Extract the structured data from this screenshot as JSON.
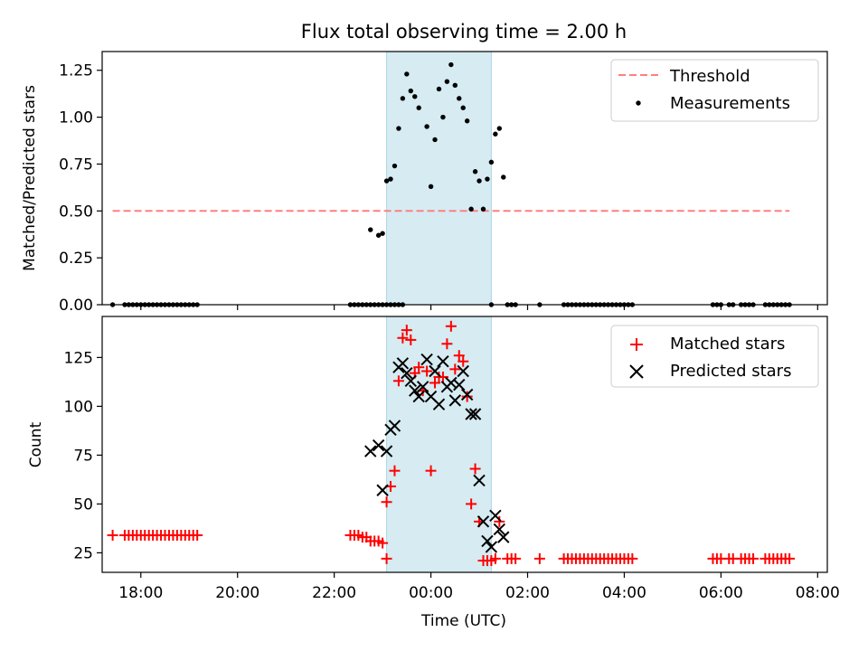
{
  "figure": {
    "title": "Flux total observing time = 2.00 h",
    "xlabel": "Time (UTC)"
  },
  "chart_data": [
    {
      "type": "scatter",
      "panel": "top",
      "ylabel": "Matched/Predicted stars",
      "xlim": [
        "17:12",
        "08:12"
      ],
      "ylim": [
        0,
        1.35
      ],
      "yticks": [
        0.0,
        0.25,
        0.5,
        0.75,
        1.0,
        1.25
      ],
      "ytick_labels": [
        "0.00",
        "0.25",
        "0.50",
        "0.75",
        "1.00",
        "1.25"
      ],
      "highlight_span": [
        "23:05",
        "01:15"
      ],
      "legend": {
        "position": "top-right",
        "entries": [
          "Threshold",
          "Measurements"
        ]
      },
      "series": [
        {
          "name": "Threshold",
          "kind": "dashed-line",
          "color": "#ff7f7f",
          "x": [
            "17:25",
            "07:25"
          ],
          "y": [
            0.5,
            0.5
          ]
        },
        {
          "name": "Measurements",
          "kind": "points",
          "color": "#000000",
          "points": [
            [
              "17:25",
              0
            ],
            [
              "17:40",
              0
            ],
            [
              "17:45",
              0
            ],
            [
              "17:50",
              0
            ],
            [
              "17:55",
              0
            ],
            [
              "18:00",
              0
            ],
            [
              "18:05",
              0
            ],
            [
              "18:10",
              0
            ],
            [
              "18:15",
              0
            ],
            [
              "18:20",
              0
            ],
            [
              "18:25",
              0
            ],
            [
              "18:30",
              0
            ],
            [
              "18:35",
              0
            ],
            [
              "18:40",
              0
            ],
            [
              "18:45",
              0
            ],
            [
              "18:50",
              0
            ],
            [
              "18:55",
              0
            ],
            [
              "19:00",
              0
            ],
            [
              "19:05",
              0
            ],
            [
              "19:10",
              0
            ],
            [
              "22:20",
              0
            ],
            [
              "22:25",
              0
            ],
            [
              "22:30",
              0
            ],
            [
              "22:35",
              0
            ],
            [
              "22:40",
              0
            ],
            [
              "22:45",
              0
            ],
            [
              "22:50",
              0
            ],
            [
              "22:55",
              0
            ],
            [
              "23:00",
              0
            ],
            [
              "23:05",
              0
            ],
            [
              "23:10",
              0
            ],
            [
              "23:15",
              0
            ],
            [
              "23:20",
              0
            ],
            [
              "23:25",
              0
            ],
            [
              "22:45",
              0.4
            ],
            [
              "22:55",
              0.37
            ],
            [
              "23:00",
              0.38
            ],
            [
              "23:05",
              0.66
            ],
            [
              "23:10",
              0.67
            ],
            [
              "23:15",
              0.74
            ],
            [
              "23:20",
              0.94
            ],
            [
              "23:25",
              1.1
            ],
            [
              "23:30",
              1.23
            ],
            [
              "23:35",
              1.14
            ],
            [
              "23:40",
              1.11
            ],
            [
              "23:45",
              1.05
            ],
            [
              "23:55",
              0.95
            ],
            [
              "00:00",
              0.63
            ],
            [
              "00:05",
              0.88
            ],
            [
              "00:10",
              1.15
            ],
            [
              "00:15",
              1.0
            ],
            [
              "00:20",
              1.19
            ],
            [
              "00:25",
              1.28
            ],
            [
              "00:30",
              1.17
            ],
            [
              "00:35",
              1.1
            ],
            [
              "00:40",
              1.05
            ],
            [
              "00:45",
              0.98
            ],
            [
              "00:50",
              0.51
            ],
            [
              "00:55",
              0.71
            ],
            [
              "01:00",
              0.66
            ],
            [
              "01:05",
              0.51
            ],
            [
              "01:10",
              0.67
            ],
            [
              "01:15",
              0.76
            ],
            [
              "01:20",
              0.91
            ],
            [
              "01:25",
              0.94
            ],
            [
              "01:30",
              0.68
            ],
            [
              "01:15",
              0
            ],
            [
              "01:35",
              0
            ],
            [
              "01:40",
              0
            ],
            [
              "01:45",
              0
            ],
            [
              "02:15",
              0
            ],
            [
              "02:45",
              0
            ],
            [
              "02:50",
              0
            ],
            [
              "02:55",
              0
            ],
            [
              "03:00",
              0
            ],
            [
              "03:05",
              0
            ],
            [
              "03:10",
              0
            ],
            [
              "03:15",
              0
            ],
            [
              "03:20",
              0
            ],
            [
              "03:25",
              0
            ],
            [
              "03:30",
              0
            ],
            [
              "03:35",
              0
            ],
            [
              "03:40",
              0
            ],
            [
              "03:45",
              0
            ],
            [
              "03:50",
              0
            ],
            [
              "03:55",
              0
            ],
            [
              "04:00",
              0
            ],
            [
              "04:05",
              0
            ],
            [
              "04:10",
              0
            ],
            [
              "05:50",
              0
            ],
            [
              "05:55",
              0
            ],
            [
              "06:00",
              0
            ],
            [
              "06:10",
              0
            ],
            [
              "06:15",
              0
            ],
            [
              "06:25",
              0
            ],
            [
              "06:30",
              0
            ],
            [
              "06:35",
              0
            ],
            [
              "06:40",
              0
            ],
            [
              "06:55",
              0
            ],
            [
              "07:00",
              0
            ],
            [
              "07:05",
              0
            ],
            [
              "07:10",
              0
            ],
            [
              "07:15",
              0
            ],
            [
              "07:20",
              0
            ],
            [
              "07:25",
              0
            ]
          ]
        }
      ]
    },
    {
      "type": "scatter",
      "panel": "bottom",
      "ylabel": "Count",
      "xlabel": "Time (UTC)",
      "xlim": [
        "17:12",
        "08:12"
      ],
      "ylim": [
        15,
        146
      ],
      "yticks": [
        25,
        50,
        75,
        100,
        125
      ],
      "xticks": [
        "18:00",
        "20:00",
        "22:00",
        "00:00",
        "02:00",
        "04:00",
        "06:00",
        "08:00"
      ],
      "highlight_span": [
        "23:05",
        "01:15"
      ],
      "legend": {
        "position": "top-right",
        "entries": [
          "Matched stars",
          "Predicted stars"
        ]
      },
      "series": [
        {
          "name": "Matched stars",
          "marker": "plus",
          "color": "#ff0000",
          "points": [
            [
              "17:25",
              34
            ],
            [
              "17:40",
              34
            ],
            [
              "17:45",
              34
            ],
            [
              "17:50",
              34
            ],
            [
              "17:55",
              34
            ],
            [
              "18:00",
              34
            ],
            [
              "18:05",
              34
            ],
            [
              "18:10",
              34
            ],
            [
              "18:15",
              34
            ],
            [
              "18:20",
              34
            ],
            [
              "18:25",
              34
            ],
            [
              "18:30",
              34
            ],
            [
              "18:35",
              34
            ],
            [
              "18:40",
              34
            ],
            [
              "18:45",
              34
            ],
            [
              "18:50",
              34
            ],
            [
              "18:55",
              34
            ],
            [
              "19:00",
              34
            ],
            [
              "19:05",
              34
            ],
            [
              "19:10",
              34
            ],
            [
              "22:20",
              34
            ],
            [
              "22:25",
              34
            ],
            [
              "22:30",
              34
            ],
            [
              "22:35",
              33
            ],
            [
              "22:40",
              33
            ],
            [
              "22:45",
              31
            ],
            [
              "22:50",
              31
            ],
            [
              "22:55",
              31
            ],
            [
              "23:00",
              30
            ],
            [
              "23:05",
              22
            ],
            [
              "23:05",
              51
            ],
            [
              "23:10",
              59
            ],
            [
              "23:15",
              67
            ],
            [
              "23:20",
              113
            ],
            [
              "23:25",
              135
            ],
            [
              "23:30",
              139
            ],
            [
              "23:35",
              134
            ],
            [
              "23:40",
              117
            ],
            [
              "23:45",
              120
            ],
            [
              "23:50",
              108
            ],
            [
              "23:55",
              118
            ],
            [
              "00:00",
              67
            ],
            [
              "00:05",
              112
            ],
            [
              "00:10",
              115
            ],
            [
              "00:15",
              115
            ],
            [
              "00:20",
              132
            ],
            [
              "00:25",
              141
            ],
            [
              "00:30",
              119
            ],
            [
              "00:35",
              126
            ],
            [
              "00:40",
              123
            ],
            [
              "00:45",
              105
            ],
            [
              "00:50",
              50
            ],
            [
              "00:55",
              68
            ],
            [
              "01:00",
              41
            ],
            [
              "01:05",
              21
            ],
            [
              "01:10",
              21
            ],
            [
              "01:15",
              21
            ],
            [
              "01:20",
              22
            ],
            [
              "01:25",
              41
            ],
            [
              "01:35",
              22
            ],
            [
              "01:40",
              22
            ],
            [
              "01:45",
              22
            ],
            [
              "02:15",
              22
            ],
            [
              "02:45",
              22
            ],
            [
              "02:50",
              22
            ],
            [
              "02:55",
              22
            ],
            [
              "03:00",
              22
            ],
            [
              "03:05",
              22
            ],
            [
              "03:10",
              22
            ],
            [
              "03:15",
              22
            ],
            [
              "03:20",
              22
            ],
            [
              "03:25",
              22
            ],
            [
              "03:30",
              22
            ],
            [
              "03:35",
              22
            ],
            [
              "03:40",
              22
            ],
            [
              "03:45",
              22
            ],
            [
              "03:50",
              22
            ],
            [
              "03:55",
              22
            ],
            [
              "04:00",
              22
            ],
            [
              "04:05",
              22
            ],
            [
              "04:10",
              22
            ],
            [
              "05:50",
              22
            ],
            [
              "05:55",
              22
            ],
            [
              "06:00",
              22
            ],
            [
              "06:10",
              22
            ],
            [
              "06:15",
              22
            ],
            [
              "06:25",
              22
            ],
            [
              "06:30",
              22
            ],
            [
              "06:35",
              22
            ],
            [
              "06:40",
              22
            ],
            [
              "06:55",
              22
            ],
            [
              "07:00",
              22
            ],
            [
              "07:05",
              22
            ],
            [
              "07:10",
              22
            ],
            [
              "07:15",
              22
            ],
            [
              "07:20",
              22
            ],
            [
              "07:25",
              22
            ]
          ]
        },
        {
          "name": "Predicted stars",
          "marker": "x",
          "color": "#000000",
          "points": [
            [
              "22:45",
              77
            ],
            [
              "22:55",
              80
            ],
            [
              "23:00",
              57
            ],
            [
              "23:05",
              77
            ],
            [
              "23:10",
              88
            ],
            [
              "23:15",
              90
            ],
            [
              "23:20",
              120
            ],
            [
              "23:25",
              122
            ],
            [
              "23:30",
              117
            ],
            [
              "23:35",
              113
            ],
            [
              "23:40",
              108
            ],
            [
              "23:45",
              105
            ],
            [
              "23:50",
              110
            ],
            [
              "23:55",
              124
            ],
            [
              "00:00",
              105
            ],
            [
              "00:05",
              118
            ],
            [
              "00:10",
              101
            ],
            [
              "00:15",
              123
            ],
            [
              "00:20",
              110
            ],
            [
              "00:25",
              112
            ],
            [
              "00:30",
              103
            ],
            [
              "00:35",
              111
            ],
            [
              "00:40",
              118
            ],
            [
              "00:45",
              106
            ],
            [
              "00:50",
              96
            ],
            [
              "00:55",
              96
            ],
            [
              "01:00",
              62
            ],
            [
              "01:05",
              41
            ],
            [
              "01:10",
              31
            ],
            [
              "01:15",
              28
            ],
            [
              "01:20",
              44
            ],
            [
              "01:25",
              37
            ],
            [
              "01:30",
              33
            ]
          ]
        }
      ]
    }
  ]
}
